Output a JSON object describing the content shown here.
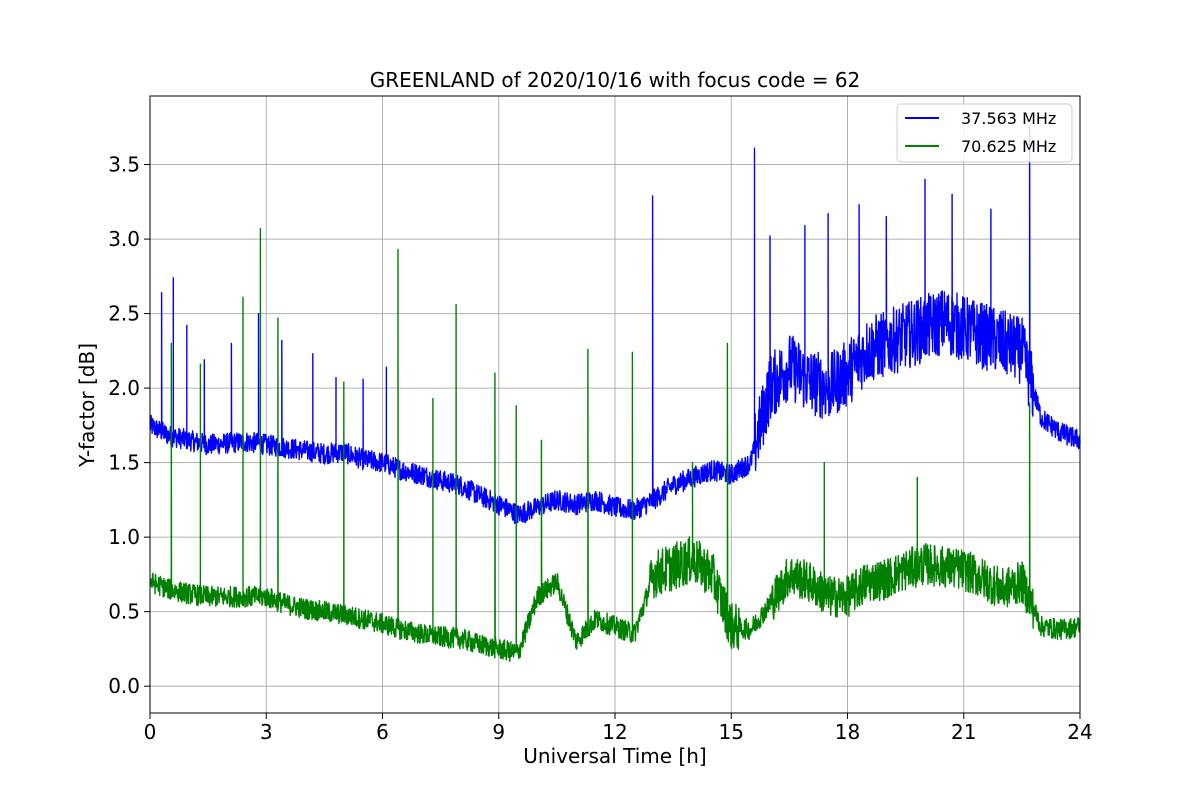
{
  "chart_data": {
    "type": "line",
    "title": "GREENLAND of 2020/10/16 with focus code = 62",
    "xlabel": "Universal Time [h]",
    "ylabel": "Y-factor [dB]",
    "xlim": [
      0,
      24
    ],
    "ylim": [
      -0.18,
      3.96
    ],
    "xticks": [
      0,
      3,
      6,
      9,
      12,
      15,
      18,
      21,
      24
    ],
    "yticks": [
      0.0,
      0.5,
      1.0,
      1.5,
      2.0,
      2.5,
      3.0,
      3.5
    ],
    "ytick_labels": [
      "0.0",
      "0.5",
      "1.0",
      "1.5",
      "2.0",
      "2.5",
      "3.0",
      "3.5"
    ],
    "grid": true,
    "legend_position": "top-right",
    "series": [
      {
        "name": "37.563 MHz",
        "color": "#0000ff",
        "x": [
          0,
          0.5,
          1,
          1.5,
          2,
          2.5,
          3,
          3.5,
          4,
          4.5,
          5,
          5.5,
          6,
          6.5,
          7,
          7.5,
          8,
          8.5,
          9,
          9.5,
          10,
          10.5,
          11,
          11.5,
          12,
          12.5,
          13,
          13.5,
          14,
          14.5,
          15,
          15.5,
          16,
          16.5,
          17,
          17.5,
          18,
          18.5,
          19,
          19.5,
          20,
          20.5,
          21,
          21.5,
          22,
          22.5,
          23,
          23.5,
          24
        ],
        "y": [
          1.75,
          1.68,
          1.65,
          1.62,
          1.63,
          1.64,
          1.62,
          1.6,
          1.58,
          1.56,
          1.57,
          1.52,
          1.5,
          1.45,
          1.42,
          1.38,
          1.35,
          1.28,
          1.22,
          1.15,
          1.2,
          1.25,
          1.22,
          1.25,
          1.2,
          1.18,
          1.25,
          1.35,
          1.4,
          1.45,
          1.42,
          1.5,
          2.0,
          2.15,
          2.05,
          2.0,
          2.1,
          2.25,
          2.3,
          2.35,
          2.4,
          2.45,
          2.4,
          2.35,
          2.3,
          2.25,
          1.8,
          1.7,
          1.65
        ],
        "spikes": [
          [
            0.3,
            2.64
          ],
          [
            0.6,
            2.74
          ],
          [
            0.95,
            2.42
          ],
          [
            1.4,
            2.19
          ],
          [
            2.1,
            2.3
          ],
          [
            2.8,
            2.5
          ],
          [
            3.4,
            2.32
          ],
          [
            4.2,
            2.23
          ],
          [
            4.8,
            2.07
          ],
          [
            5.5,
            2.06
          ],
          [
            6.1,
            2.14
          ],
          [
            12.97,
            3.29
          ],
          [
            15.6,
            3.61
          ],
          [
            16.0,
            3.02
          ],
          [
            16.9,
            3.09
          ],
          [
            17.5,
            3.17
          ],
          [
            18.3,
            3.23
          ],
          [
            19.0,
            3.15
          ],
          [
            20.0,
            3.4
          ],
          [
            20.7,
            3.3
          ],
          [
            21.7,
            3.2
          ],
          [
            22.7,
            3.75
          ]
        ]
      },
      {
        "name": "70.625 MHz",
        "color": "#008000",
        "x": [
          0,
          0.5,
          1,
          1.5,
          2,
          2.5,
          3,
          3.5,
          4,
          4.5,
          5,
          5.5,
          6,
          6.5,
          7,
          7.5,
          8,
          8.5,
          9,
          9.5,
          10,
          10.5,
          11,
          11.5,
          12,
          12.5,
          13,
          13.5,
          14,
          14.5,
          15,
          15.5,
          16,
          16.5,
          17,
          17.5,
          18,
          18.5,
          19,
          19.5,
          20,
          20.5,
          21,
          21.5,
          22,
          22.5,
          23,
          23.5,
          24
        ],
        "y": [
          0.7,
          0.65,
          0.62,
          0.6,
          0.6,
          0.6,
          0.6,
          0.55,
          0.52,
          0.5,
          0.48,
          0.45,
          0.42,
          0.38,
          0.35,
          0.33,
          0.32,
          0.28,
          0.25,
          0.22,
          0.6,
          0.7,
          0.3,
          0.45,
          0.4,
          0.35,
          0.75,
          0.8,
          0.85,
          0.75,
          0.4,
          0.38,
          0.55,
          0.75,
          0.7,
          0.6,
          0.6,
          0.7,
          0.72,
          0.78,
          0.82,
          0.8,
          0.78,
          0.72,
          0.65,
          0.7,
          0.4,
          0.38,
          0.4
        ],
        "spikes": [
          [
            0.55,
            2.3
          ],
          [
            1.3,
            2.16
          ],
          [
            2.4,
            2.61
          ],
          [
            2.85,
            3.07
          ],
          [
            3.3,
            2.47
          ],
          [
            5.0,
            2.04
          ],
          [
            6.4,
            2.93
          ],
          [
            7.3,
            1.93
          ],
          [
            7.9,
            2.56
          ],
          [
            8.9,
            2.1
          ],
          [
            9.45,
            1.88
          ],
          [
            10.1,
            1.65
          ],
          [
            11.3,
            2.26
          ],
          [
            12.45,
            2.24
          ],
          [
            14.0,
            1.5
          ],
          [
            14.9,
            2.3
          ],
          [
            17.4,
            1.5
          ],
          [
            19.8,
            1.4
          ],
          [
            22.7,
            1.9
          ]
        ]
      }
    ]
  }
}
